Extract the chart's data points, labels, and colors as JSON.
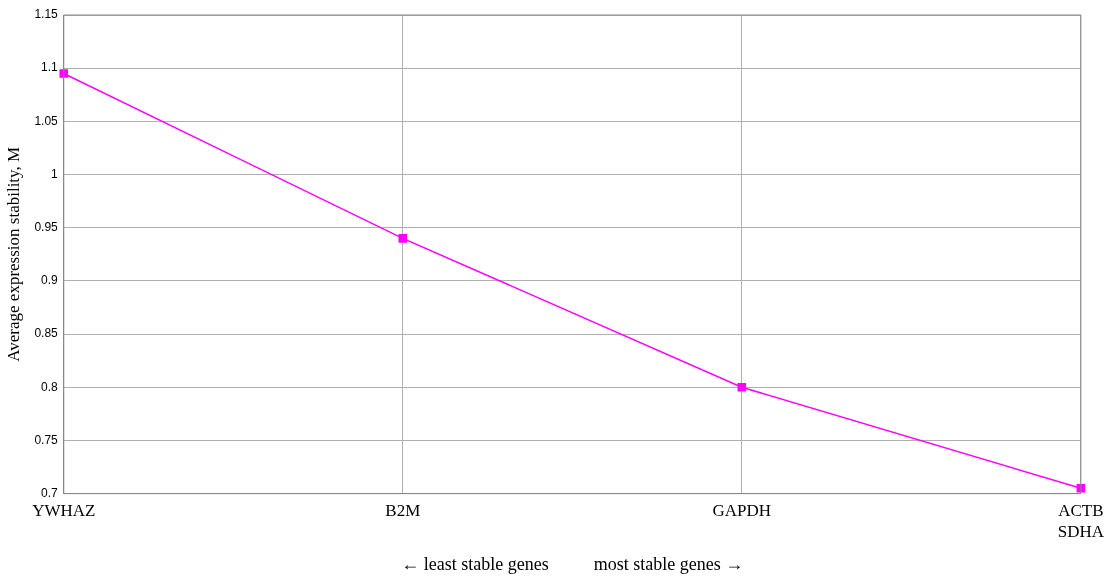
{
  "chart_data": {
    "type": "line",
    "ylabel": "Average expression stability, M",
    "xlabel": "← least stable genes          most stable genes →",
    "categories": [
      "YWHAZ",
      "B2M",
      "GAPDH",
      "ACTB\nSDHA"
    ],
    "series": [
      {
        "color": "#ff00ff",
        "values": [
          1.095,
          0.94,
          0.8,
          0.705
        ]
      }
    ],
    "ylim": [
      0.7,
      1.15
    ],
    "yticks": [
      0.7,
      0.75,
      0.8,
      0.85,
      0.9,
      0.95,
      1,
      1.05,
      1.1,
      1.15
    ],
    "grid": true,
    "legend": false,
    "marker": "square",
    "line_style": "solid"
  }
}
